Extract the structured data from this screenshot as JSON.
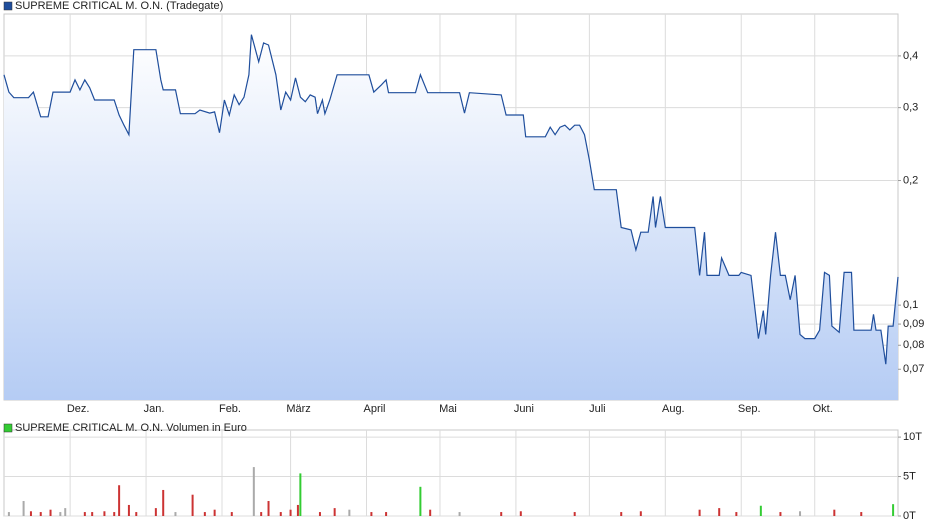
{
  "chart_data": [
    {
      "type": "line",
      "x": [
        0,
        2,
        4,
        10,
        12,
        15,
        18,
        20,
        27,
        29,
        31,
        33,
        35,
        37,
        45,
        47,
        49,
        51,
        53,
        62,
        64,
        65,
        70,
        72,
        78,
        80,
        84,
        86,
        88,
        90,
        92,
        94,
        96,
        98,
        100,
        101,
        104,
        106,
        108,
        111,
        113,
        115,
        117,
        119,
        121,
        123,
        125,
        127,
        128,
        130,
        131,
        133,
        136,
        139,
        149,
        151,
        154,
        156,
        157,
        168,
        170,
        173,
        186,
        188,
        190,
        203,
        205,
        212,
        213,
        221,
        223,
        225,
        227,
        229,
        231,
        233,
        235,
        237,
        239,
        241,
        250,
        252,
        256,
        258,
        260,
        263,
        265,
        266,
        268,
        270,
        282,
        284,
        286,
        287,
        292,
        293,
        296,
        300,
        301,
        305,
        308,
        310,
        311,
        313,
        315,
        317,
        319,
        321,
        323,
        325,
        327,
        331,
        333,
        335,
        337,
        338,
        341,
        343,
        346,
        347,
        354,
        355,
        356,
        358,
        360,
        361,
        363,
        365
      ],
      "series": [
        {
          "name": "SUPREME CRITICAL M. O.N. (Tradegate)",
          "color": "#1f4e9c",
          "values": [
            0.36,
            0.327,
            0.317,
            0.317,
            0.327,
            0.285,
            0.285,
            0.327,
            0.327,
            0.35,
            0.331,
            0.35,
            0.335,
            0.313,
            0.313,
            0.288,
            0.272,
            0.258,
            0.414,
            0.414,
            0.35,
            0.331,
            0.331,
            0.29,
            0.29,
            0.296,
            0.291,
            0.293,
            0.261,
            0.313,
            0.288,
            0.322,
            0.305,
            0.318,
            0.36,
            0.45,
            0.387,
            0.43,
            0.425,
            0.36,
            0.296,
            0.327,
            0.313,
            0.354,
            0.318,
            0.31,
            0.322,
            0.318,
            0.29,
            0.313,
            0.29,
            0.313,
            0.36,
            0.36,
            0.36,
            0.327,
            0.34,
            0.35,
            0.326,
            0.326,
            0.36,
            0.326,
            0.326,
            0.291,
            0.326,
            0.322,
            0.288,
            0.288,
            0.255,
            0.255,
            0.269,
            0.258,
            0.269,
            0.272,
            0.265,
            0.272,
            0.272,
            0.258,
            0.224,
            0.19,
            0.19,
            0.154,
            0.152,
            0.136,
            0.15,
            0.15,
            0.183,
            0.154,
            0.183,
            0.154,
            0.154,
            0.118,
            0.15,
            0.118,
            0.118,
            0.13,
            0.118,
            0.118,
            0.12,
            0.118,
            0.083,
            0.097,
            0.085,
            0.118,
            0.15,
            0.118,
            0.118,
            0.103,
            0.118,
            0.085,
            0.083,
            0.083,
            0.087,
            0.12,
            0.118,
            0.089,
            0.086,
            0.12,
            0.12,
            0.087,
            0.087,
            0.095,
            0.087,
            0.087,
            0.072,
            0.089,
            0.089,
            0.117
          ]
        }
      ],
      "xlim": [
        0,
        365
      ],
      "xticks": [
        {
          "value": 27,
          "label": "Dez."
        },
        {
          "value": 58,
          "label": "Jan."
        },
        {
          "value": 89,
          "label": "Feb."
        },
        {
          "value": 117,
          "label": "März"
        },
        {
          "value": 148,
          "label": "April"
        },
        {
          "value": 178,
          "label": "Mai"
        },
        {
          "value": 209,
          "label": "Juni"
        },
        {
          "value": 239,
          "label": "Juli"
        },
        {
          "value": 270,
          "label": "Aug."
        },
        {
          "value": 301,
          "label": "Sep."
        },
        {
          "value": 331,
          "label": "Okt."
        }
      ],
      "ylim": [
        0.059,
        0.505
      ],
      "yticks": [
        {
          "value": 0.07,
          "label": "0,07"
        },
        {
          "value": 0.08,
          "label": "0,08"
        },
        {
          "value": 0.09,
          "label": "0,09"
        },
        {
          "value": 0.1,
          "label": "0,1"
        },
        {
          "value": 0.2,
          "label": "0,2"
        },
        {
          "value": 0.3,
          "label": "0,3"
        },
        {
          "value": 0.4,
          "label": "0,4"
        }
      ],
      "log_y": true,
      "grid": true
    },
    {
      "type": "bar",
      "x": [
        2,
        8,
        11,
        15,
        19,
        23,
        25,
        33,
        36,
        41,
        45,
        47,
        51,
        54,
        62,
        65,
        70,
        77,
        82,
        86,
        93,
        102,
        105,
        108,
        113,
        117,
        120,
        121,
        129,
        135,
        141,
        150,
        156,
        170,
        174,
        186,
        203,
        211,
        233,
        252,
        260,
        284,
        292,
        299,
        309,
        317,
        325,
        339,
        350,
        363
      ],
      "series": [
        {
          "name": "SUPREME CRITICAL M. O.N. Volumen in Euro",
          "color": "#33cc33",
          "values": [
            500,
            1900,
            600,
            500,
            800,
            500,
            1000,
            500,
            500,
            600,
            500,
            3900,
            1400,
            500,
            1000,
            3300,
            500,
            2700,
            500,
            800,
            500,
            6200,
            500,
            1900,
            500,
            800,
            1400,
            5400,
            500,
            1000,
            800,
            500,
            500,
            3700,
            800,
            500,
            500,
            600,
            500,
            500,
            600,
            800,
            1000,
            500,
            1300,
            500,
            600,
            800,
            500,
            1500
          ],
          "colors": [
            "#aaaaaa",
            "#aaaaaa",
            "#cc3333",
            "#cc3333",
            "#cc3333",
            "#aaaaaa",
            "#aaaaaa",
            "#cc3333",
            "#cc3333",
            "#cc3333",
            "#cc3333",
            "#cc3333",
            "#cc3333",
            "#cc3333",
            "#cc3333",
            "#cc3333",
            "#aaaaaa",
            "#cc3333",
            "#cc3333",
            "#cc3333",
            "#cc3333",
            "#aaaaaa",
            "#cc3333",
            "#cc3333",
            "#cc3333",
            "#cc3333",
            "#cc3333",
            "#33cc33",
            "#cc3333",
            "#cc3333",
            "#aaaaaa",
            "#cc3333",
            "#cc3333",
            "#33cc33",
            "#cc3333",
            "#aaaaaa",
            "#cc3333",
            "#cc3333",
            "#cc3333",
            "#cc3333",
            "#cc3333",
            "#cc3333",
            "#cc3333",
            "#cc3333",
            "#33cc33",
            "#cc3333",
            "#aaaaaa",
            "#cc3333",
            "#cc3333",
            "#33cc33"
          ]
        }
      ],
      "xlim": [
        0,
        365
      ],
      "ylim": [
        0,
        10900
      ],
      "yticks": [
        {
          "value": 0,
          "label": "0T"
        },
        {
          "value": 5000,
          "label": "5T"
        },
        {
          "value": 10000,
          "label": "10T"
        }
      ],
      "grid": true
    }
  ]
}
